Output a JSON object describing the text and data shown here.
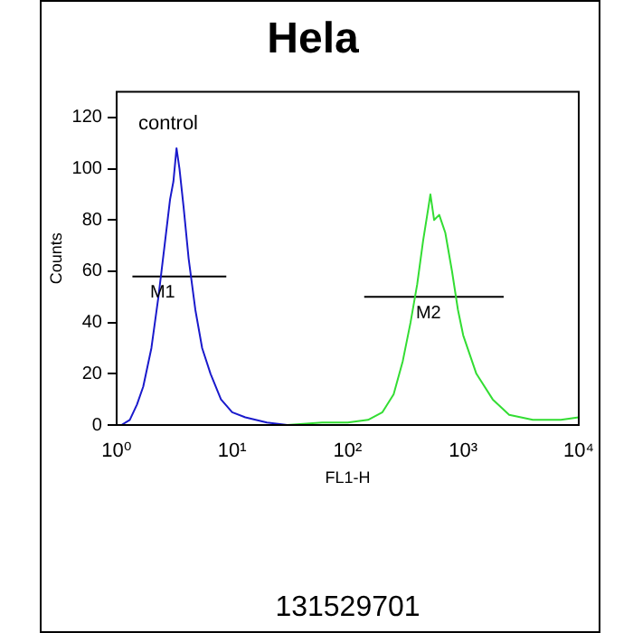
{
  "chart_data": {
    "type": "line",
    "title": "Hela",
    "xlabel": "FL1-H",
    "ylabel": "Counts",
    "log": "x",
    "xlim": [
      1,
      10000
    ],
    "xticks": [
      {
        "value": 1,
        "label": "10⁰"
      },
      {
        "value": 10,
        "label": "10¹"
      },
      {
        "value": 100,
        "label": "10²"
      },
      {
        "value": 1000,
        "label": "10³"
      },
      {
        "value": 10000,
        "label": "10⁴"
      }
    ],
    "ylim": [
      0,
      130
    ],
    "yticks": [
      0,
      20,
      40,
      60,
      80,
      100,
      120
    ],
    "grid": false,
    "legend": false,
    "marker": "none",
    "line_style": "solid",
    "series": [
      {
        "color": "#1a1acc",
        "x": [
          1.1,
          1.3,
          1.5,
          1.7,
          2.0,
          2.3,
          2.6,
          2.9,
          3.1,
          3.3,
          3.5,
          3.8,
          4.2,
          4.8,
          5.5,
          6.5,
          8,
          10,
          13,
          20,
          30
        ],
        "values": [
          0,
          2,
          8,
          15,
          30,
          50,
          70,
          88,
          95,
          108,
          100,
          85,
          65,
          45,
          30,
          20,
          10,
          5,
          3,
          1,
          0
        ]
      },
      {
        "color": "#33dd33",
        "x": [
          30,
          60,
          100,
          150,
          200,
          250,
          300,
          350,
          400,
          450,
          500,
          520,
          560,
          620,
          700,
          800,
          900,
          1000,
          1300,
          1800,
          2500,
          4000,
          7000,
          10000
        ],
        "values": [
          0,
          1,
          1,
          2,
          5,
          12,
          25,
          40,
          55,
          72,
          85,
          90,
          80,
          82,
          75,
          60,
          45,
          35,
          20,
          10,
          4,
          2,
          2,
          3
        ]
      },
      {
        "color": "#000000",
        "x": [
          1.37,
          8.9
        ],
        "values": [
          58,
          58
        ]
      },
      {
        "color": "#000000",
        "x": [
          139,
          2240
        ],
        "values": [
          50,
          50
        ]
      }
    ],
    "annotations": [
      "control",
      {
        "text": "M1",
        "x": 2.5,
        "y": 58
      },
      {
        "text": "M2",
        "x": 500,
        "y": 50
      },
      "131529701"
    ]
  }
}
